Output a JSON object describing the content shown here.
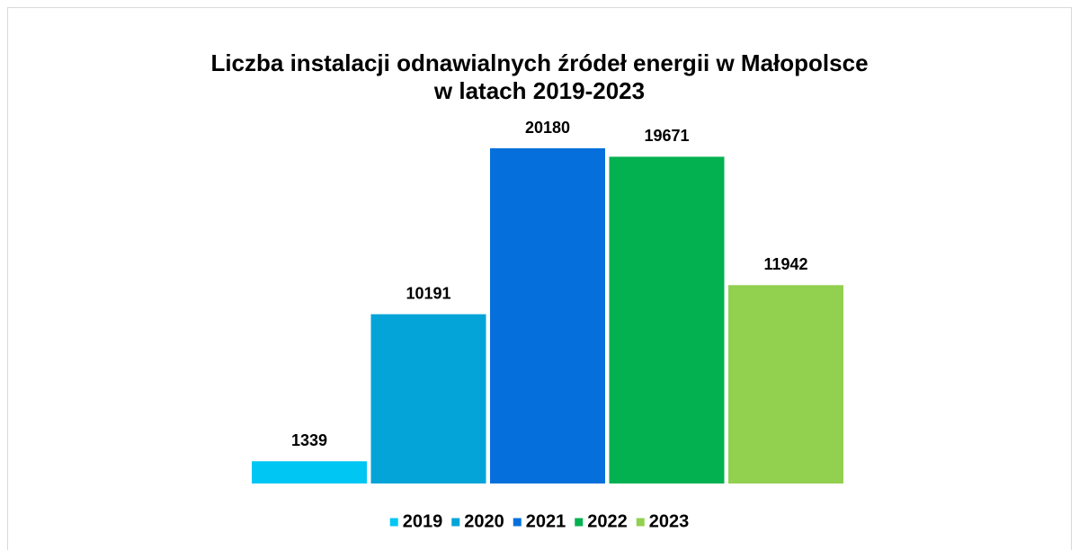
{
  "chart_data": {
    "type": "bar",
    "title": [
      "Liczba instalacji odnawialnych źródeł energii w Małopolsce",
      "w latach 2019-2023"
    ],
    "series": [
      {
        "name": "2019",
        "color": "#00c6f4",
        "values": [
          1339
        ]
      },
      {
        "name": "2020",
        "color": "#04a4d8",
        "values": [
          10191
        ]
      },
      {
        "name": "2021",
        "color": "#0570db",
        "values": [
          20180
        ]
      },
      {
        "name": "2022",
        "color": "#03b150",
        "values": [
          19671
        ]
      },
      {
        "name": "2023",
        "color": "#92d050",
        "values": [
          11942
        ]
      }
    ],
    "legend": "bottom"
  }
}
